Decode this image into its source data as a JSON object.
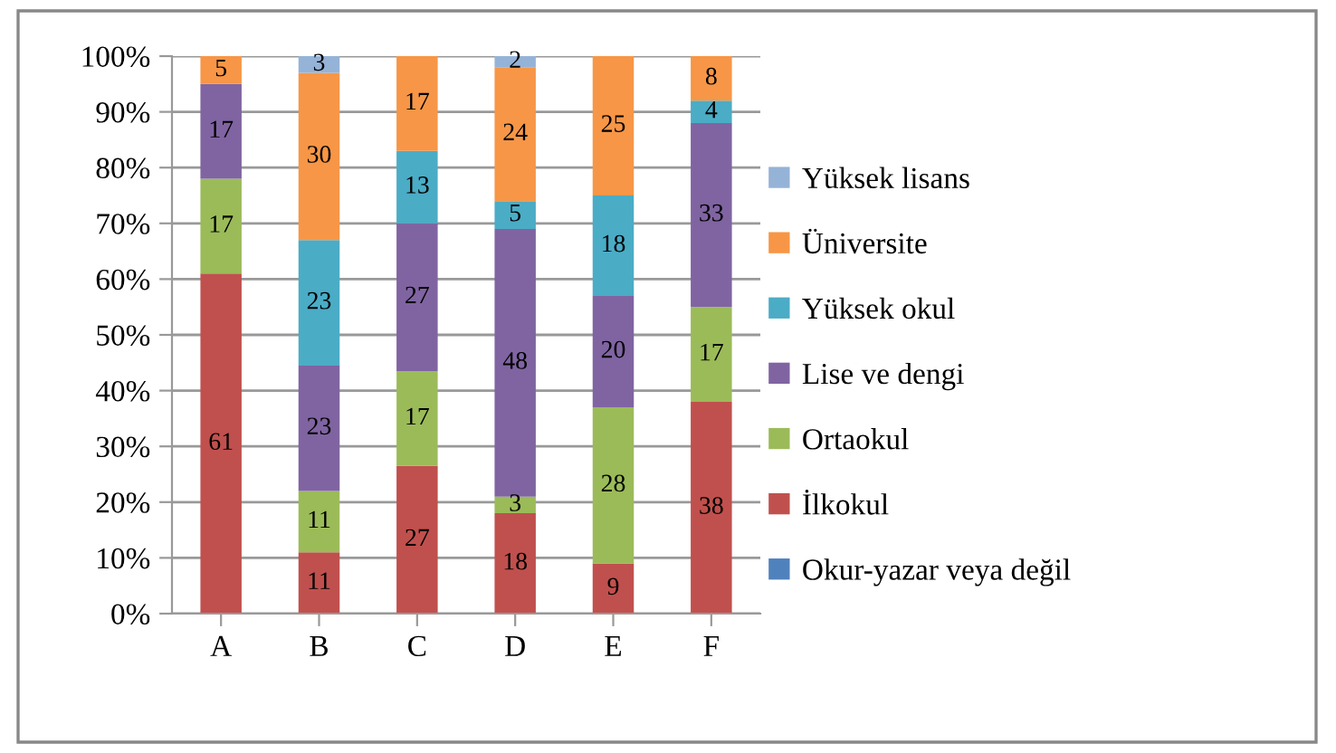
{
  "chart_data": {
    "type": "bar",
    "stacked": true,
    "categories": [
      "A",
      "B",
      "C",
      "D",
      "E",
      "F"
    ],
    "series": [
      {
        "name": "Okur-yazar veya değil",
        "color": "#4f81bd",
        "values": [
          0,
          0,
          0,
          0,
          0,
          0
        ],
        "value_labels": [
          null,
          null,
          null,
          null,
          null,
          null
        ]
      },
      {
        "name": "İlkokul",
        "color": "#c0504d",
        "values": [
          61,
          11,
          26.5,
          18,
          9,
          38
        ],
        "value_labels": [
          "61",
          "11",
          "27",
          "18",
          "9",
          "38"
        ]
      },
      {
        "name": "Ortaokul",
        "color": "#9bbb59",
        "values": [
          17,
          11,
          17,
          3,
          28,
          17
        ],
        "value_labels": [
          "17",
          "11",
          "17",
          "3",
          "28",
          "17"
        ]
      },
      {
        "name": "Lise ve dengi",
        "color": "#8064a2",
        "values": [
          17,
          22.5,
          26.5,
          48,
          20,
          33
        ],
        "value_labels": [
          "17",
          "23",
          "27",
          "48",
          "20",
          "33"
        ]
      },
      {
        "name": "Yüksek okul",
        "color": "#4bacc6",
        "values": [
          0,
          22.5,
          13,
          5,
          18,
          4
        ],
        "value_labels": [
          null,
          "23",
          "13",
          "5",
          "18",
          "4"
        ]
      },
      {
        "name": "Üniversite",
        "color": "#f79646",
        "values": [
          5,
          30,
          17,
          24,
          25,
          8
        ],
        "value_labels": [
          "5",
          "30",
          "17",
          "24",
          "25",
          "8"
        ]
      },
      {
        "name": "Yüksek lisans",
        "color": "#95b3d7",
        "values": [
          0,
          3,
          0,
          2,
          0,
          0
        ],
        "value_labels": [
          null,
          "3",
          null,
          "2",
          null,
          null
        ]
      }
    ],
    "ylim": [
      0,
      100
    ],
    "yticks": [
      {
        "value": 0,
        "label": "0%"
      },
      {
        "value": 10,
        "label": "10%"
      },
      {
        "value": 20,
        "label": "20%"
      },
      {
        "value": 30,
        "label": "30%"
      },
      {
        "value": 40,
        "label": "40%"
      },
      {
        "value": 50,
        "label": "50%"
      },
      {
        "value": 60,
        "label": "60%"
      },
      {
        "value": 70,
        "label": "70%"
      },
      {
        "value": 80,
        "label": "80%"
      },
      {
        "value": 90,
        "label": "90%"
      },
      {
        "value": 100,
        "label": "100%"
      }
    ],
    "grid": "y",
    "legend": "right"
  }
}
